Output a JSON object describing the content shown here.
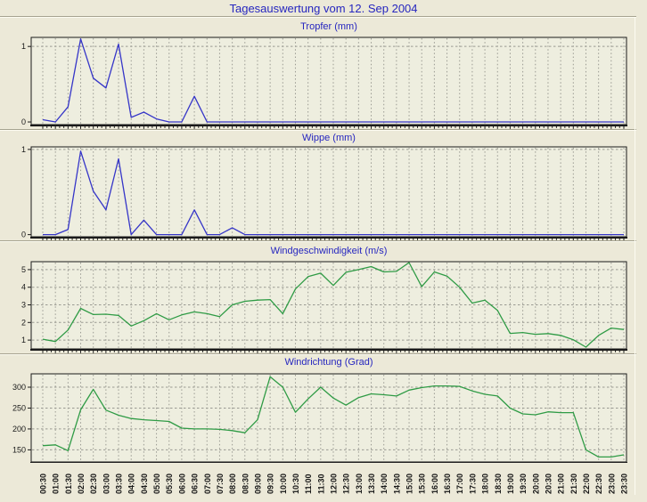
{
  "page": {
    "title": "Tagesauswertung vom 12. Sep 2004",
    "background": "#ece9d8"
  },
  "colors": {
    "title_text": "#2626bf",
    "plot_bg": "#eeeedf",
    "grid": "#9a9a92",
    "axis": "#1a1a1a",
    "rain_line": "#3535c8",
    "wind_line": "#2f9b45"
  },
  "x_labels": [
    "00:30",
    "01:00",
    "01:30",
    "02:00",
    "02:30",
    "03:00",
    "03:30",
    "04:00",
    "04:30",
    "05:00",
    "05:30",
    "06:00",
    "06:30",
    "07:00",
    "07:30",
    "08:00",
    "08:30",
    "09:00",
    "09:30",
    "10:00",
    "10:30",
    "11:00",
    "11:30",
    "12:00",
    "12:30",
    "13:00",
    "13:30",
    "14:00",
    "14:30",
    "15:00",
    "15:30",
    "16:00",
    "16:30",
    "17:00",
    "17:30",
    "18:00",
    "18:30",
    "19:00",
    "19:30",
    "20:00",
    "20:30",
    "21:00",
    "21:30",
    "22:00",
    "22:30",
    "23:00",
    "23:30"
  ],
  "chart_data": [
    {
      "type": "line",
      "title": "Tropfer (mm)",
      "color": "#3535c8",
      "ylim": [
        -0.035,
        1.12
      ],
      "yticks": [
        0,
        1
      ],
      "legend": "none",
      "grid": "dashed",
      "categories": [
        "00:30",
        "01:00",
        "01:30",
        "02:00",
        "02:30",
        "03:00",
        "03:30",
        "04:00",
        "04:30",
        "05:00",
        "05:30",
        "06:00",
        "06:30",
        "07:00",
        "07:30",
        "08:00",
        "08:30",
        "09:00",
        "09:30",
        "10:00",
        "10:30",
        "11:00",
        "11:30",
        "12:00",
        "12:30",
        "13:00",
        "13:30",
        "14:00",
        "14:30",
        "15:00",
        "15:30",
        "16:00",
        "16:30",
        "17:00",
        "17:30",
        "18:00",
        "18:30",
        "19:00",
        "19:30",
        "20:00",
        "20:30",
        "21:00",
        "21:30",
        "22:00",
        "22:30",
        "23:00",
        "23:30"
      ],
      "values": [
        0.03,
        0,
        0.2,
        1.1,
        0.58,
        0.45,
        1.03,
        0.06,
        0.13,
        0.04,
        0,
        0,
        0.34,
        0,
        0,
        0,
        0,
        0,
        0,
        0,
        0,
        0,
        0,
        0,
        0,
        0,
        0,
        0,
        0,
        0,
        0,
        0,
        0,
        0,
        0,
        0,
        0,
        0,
        0,
        0,
        0,
        0,
        0,
        0,
        0,
        0,
        0
      ]
    },
    {
      "type": "line",
      "title": "Wippe (mm)",
      "color": "#3535c8",
      "ylim": [
        -0.025,
        1.03
      ],
      "yticks": [
        0,
        1
      ],
      "legend": "none",
      "grid": "dashed",
      "categories": [
        "00:30",
        "01:00",
        "01:30",
        "02:00",
        "02:30",
        "03:00",
        "03:30",
        "04:00",
        "04:30",
        "05:00",
        "05:30",
        "06:00",
        "06:30",
        "07:00",
        "07:30",
        "08:00",
        "08:30",
        "09:00",
        "09:30",
        "10:00",
        "10:30",
        "11:00",
        "11:30",
        "12:00",
        "12:30",
        "13:00",
        "13:30",
        "14:00",
        "14:30",
        "15:00",
        "15:30",
        "16:00",
        "16:30",
        "17:00",
        "17:30",
        "18:00",
        "18:30",
        "19:00",
        "19:30",
        "20:00",
        "20:30",
        "21:00",
        "21:30",
        "22:00",
        "22:30",
        "23:00",
        "23:30"
      ],
      "values": [
        0,
        0,
        0.06,
        0.98,
        0.51,
        0.29,
        0.89,
        0,
        0.17,
        0,
        0,
        0,
        0.29,
        0,
        0,
        0.08,
        0,
        0,
        0,
        0,
        0,
        0,
        0,
        0,
        0,
        0,
        0,
        0,
        0,
        0,
        0,
        0,
        0,
        0,
        0,
        0,
        0,
        0,
        0,
        0,
        0,
        0,
        0,
        0,
        0,
        0,
        0
      ]
    },
    {
      "type": "line",
      "title": "Windgeschwindigkeit (m/s)",
      "color": "#2f9b45",
      "ylim": [
        0.5,
        5.45
      ],
      "yticks": [
        1,
        2,
        3,
        4,
        5
      ],
      "legend": "none",
      "grid": "dashed",
      "categories": [
        "00:30",
        "01:00",
        "01:30",
        "02:00",
        "02:30",
        "03:00",
        "03:30",
        "04:00",
        "04:30",
        "05:00",
        "05:30",
        "06:00",
        "06:30",
        "07:00",
        "07:30",
        "08:00",
        "08:30",
        "09:00",
        "09:30",
        "10:00",
        "10:30",
        "11:00",
        "11:30",
        "12:00",
        "12:30",
        "13:00",
        "13:30",
        "14:00",
        "14:30",
        "15:00",
        "15:30",
        "16:00",
        "16:30",
        "17:00",
        "17:30",
        "18:00",
        "18:30",
        "19:00",
        "19:30",
        "20:00",
        "20:30",
        "21:00",
        "21:30",
        "22:00",
        "22:30",
        "23:00",
        "23:30"
      ],
      "values": [
        1.05,
        0.92,
        1.57,
        2.8,
        2.45,
        2.47,
        2.4,
        1.8,
        2.1,
        2.5,
        2.15,
        2.43,
        2.6,
        2.5,
        2.33,
        3.0,
        3.2,
        3.27,
        3.3,
        2.5,
        3.9,
        4.6,
        4.8,
        4.1,
        4.85,
        5.0,
        5.17,
        4.87,
        4.9,
        5.4,
        4.03,
        4.87,
        4.63,
        4.0,
        3.1,
        3.27,
        2.68,
        1.38,
        1.43,
        1.33,
        1.37,
        1.27,
        1.02,
        0.6,
        1.27,
        1.68,
        1.6
      ]
    },
    {
      "type": "line",
      "title": "Windrichtung (Grad)",
      "color": "#2f9b45",
      "ylim": [
        121,
        332
      ],
      "yticks": [
        150,
        200,
        250,
        300
      ],
      "legend": "none",
      "grid": "dashed",
      "categories": [
        "00:30",
        "01:00",
        "01:30",
        "02:00",
        "02:30",
        "03:00",
        "03:30",
        "04:00",
        "04:30",
        "05:00",
        "05:30",
        "06:00",
        "06:30",
        "07:00",
        "07:30",
        "08:00",
        "08:30",
        "09:00",
        "09:30",
        "10:00",
        "10:30",
        "11:00",
        "11:30",
        "12:00",
        "12:30",
        "13:00",
        "13:30",
        "14:00",
        "14:30",
        "15:00",
        "15:30",
        "16:00",
        "16:30",
        "17:00",
        "17:30",
        "18:00",
        "18:30",
        "19:00",
        "19:30",
        "20:00",
        "20:30",
        "21:00",
        "21:30",
        "22:00",
        "22:30",
        "23:00",
        "23:30"
      ],
      "values": [
        160,
        162,
        148,
        246,
        295,
        245,
        233,
        225,
        222,
        220,
        218,
        202,
        200,
        200,
        199,
        196,
        191,
        222,
        325,
        300,
        240,
        272,
        300,
        274,
        257,
        275,
        284,
        282,
        279,
        293,
        299,
        303,
        303,
        302,
        291,
        283,
        279,
        250,
        236,
        234,
        241,
        239,
        239,
        150,
        133,
        133,
        138
      ]
    }
  ]
}
